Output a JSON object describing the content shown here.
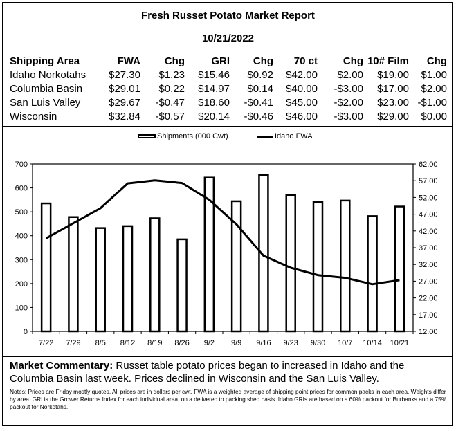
{
  "report": {
    "title": "Fresh Russet Potato Market Report",
    "date": "10/21/2022"
  },
  "price_table": {
    "headers": [
      "Shipping Area",
      "FWA",
      "Chg",
      "GRI",
      "Chg",
      "70 ct",
      "Chg",
      "10# Film",
      "Chg"
    ],
    "rows": [
      [
        "Idaho Norkotahs",
        "$27.30",
        "$1.23",
        "$15.46",
        "$0.92",
        "$42.00",
        "$2.00",
        "$19.00",
        "$1.00"
      ],
      [
        "Columbia Basin",
        "$29.01",
        "$0.22",
        "$14.97",
        "$0.14",
        "$40.00",
        "-$3.00",
        "$17.00",
        "$2.00"
      ],
      [
        "San Luis Valley",
        "$29.67",
        "-$0.47",
        "$18.60",
        "-$0.41",
        "$45.00",
        "-$2.00",
        "$23.00",
        "-$1.00"
      ],
      [
        "Wisconsin",
        "$32.84",
        "-$0.57",
        "$20.14",
        "-$0.46",
        "$46.00",
        "-$3.00",
        "$29.00",
        "$0.00"
      ]
    ]
  },
  "chart_data": {
    "type": "bar",
    "categories": [
      "7/22",
      "7/29",
      "8/5",
      "8/12",
      "8/19",
      "8/26",
      "9/2",
      "9/9",
      "9/16",
      "9/23",
      "9/30",
      "10/7",
      "10/14",
      "10/21"
    ],
    "series": [
      {
        "name": "Shipments (000 Cwt)",
        "type": "bar",
        "axis": "left",
        "values": [
          535,
          478,
          432,
          440,
          473,
          385,
          643,
          544,
          653,
          570,
          541,
          547,
          482,
          522
        ]
      },
      {
        "name": "Idaho FWA",
        "type": "line",
        "axis": "right",
        "values": [
          39.8,
          44.3,
          48.8,
          56.2,
          57.1,
          56.3,
          51.3,
          44.0,
          34.6,
          31.0,
          28.8,
          28.0,
          26.1,
          27.3
        ]
      }
    ],
    "y_left": {
      "min": 0,
      "max": 700,
      "ticks": [
        "0",
        "100",
        "200",
        "300",
        "400",
        "500",
        "600",
        "700"
      ]
    },
    "y_right": {
      "min": 12,
      "max": 62,
      "ticks": [
        "12.00",
        "17.00",
        "22.00",
        "27.00",
        "32.00",
        "37.00",
        "42.00",
        "47.00",
        "52.00",
        "57.00",
        "62.00"
      ]
    },
    "legend_position": "top-center",
    "grid": false
  },
  "commentary": {
    "label": "Market Commentary:",
    "text": "Russet table potato prices began to increased in Idaho and the Columbia Basin last week. Prices declined in Wisconsin and the San Luis Valley."
  },
  "notes": "Notes: Prices are Friday mostly quotes. All prices are in dollars per cwt. FWA is a weighted average of shipping point prices for  common packs in each area. Weights differ by area. GRI is the Grower Returns Index for each individual area, on a delivered to packing shed basis. Idaho GRIs are based on a 60% packout for Burbanks and a 75% packout for Norkotahs."
}
